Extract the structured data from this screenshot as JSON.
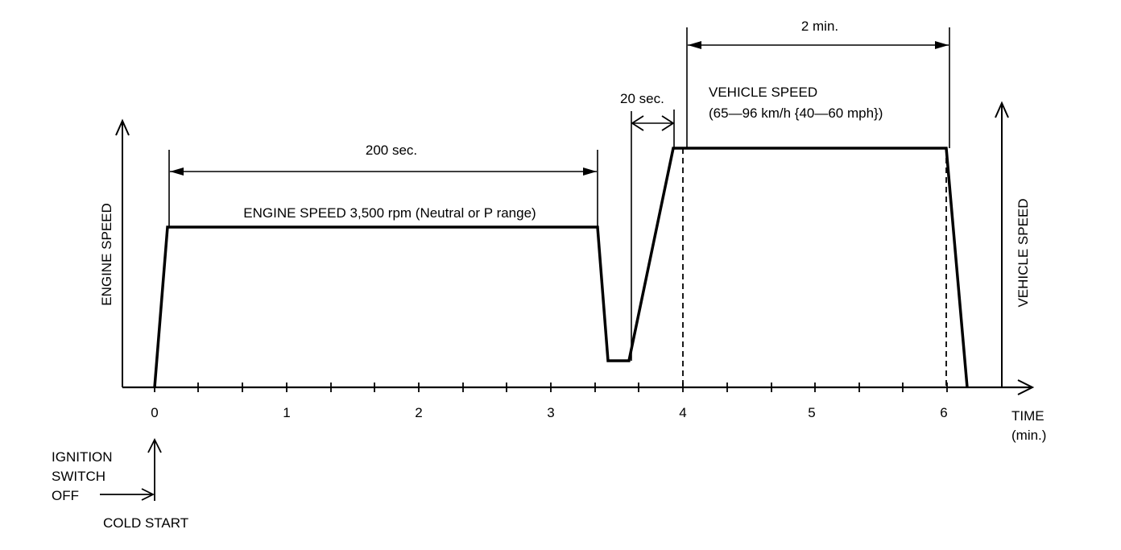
{
  "diagram": {
    "labels": {
      "engine_speed_axis": "ENGINE SPEED",
      "vehicle_speed_axis": "VEHICLE SPEED",
      "time_axis_line1": "TIME",
      "time_axis_line2": "(min.)",
      "engine_speed_note": "ENGINE SPEED 3,500 rpm (Neutral or P range)",
      "vehicle_speed_note_line1": "VEHICLE SPEED",
      "vehicle_speed_note_line2": "(65—96 km/h {40—60 mph})",
      "dur_200": "200 sec.",
      "dur_20": "20 sec.",
      "dur_2min": "2 min.",
      "ignition_line1": "IGNITION",
      "ignition_line2": "SWITCH",
      "ignition_line3": "OFF",
      "cold_start": "COLD START"
    },
    "time_ticks": [
      "0",
      "1",
      "2",
      "3",
      "4",
      "5",
      "6"
    ]
  }
}
